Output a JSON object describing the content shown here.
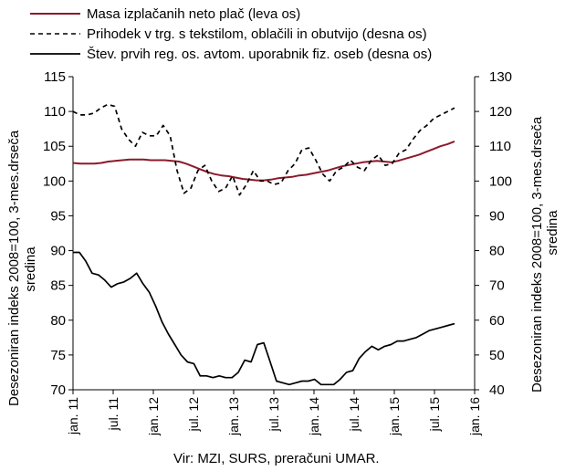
{
  "chart_data": {
    "type": "line",
    "left_axis": {
      "ylim": [
        70,
        115
      ],
      "ticks": [
        70,
        75,
        80,
        85,
        90,
        95,
        100,
        105,
        110,
        115
      ],
      "label_line1": "Desezoniran indeks 2008=100, 3-mes.drseča",
      "label_line2": "sredina"
    },
    "right_axis": {
      "ylim": [
        40,
        130
      ],
      "ticks": [
        40,
        50,
        60,
        70,
        80,
        90,
        100,
        110,
        120,
        130
      ],
      "label_line1": "Desezoniran indeks 2008=100, 3-mes.drseča",
      "label_line2": "sredina"
    },
    "x_axis": {
      "range": [
        "2011-01",
        "2016-01"
      ],
      "tick_labels": [
        "jan. 11",
        "jul. 11",
        "jan. 12",
        "jul. 12",
        "jan. 13",
        "jul. 13",
        "jan. 14",
        "jul. 14",
        "jan. 15",
        "jul. 15",
        "jan. 16"
      ]
    },
    "series": [
      {
        "name": "Masa izplačanih neto plač (leva os)",
        "axis": "left",
        "color": "#8b1a2b",
        "dash": "solid",
        "values": [
          102.6,
          102.5,
          102.5,
          102.5,
          102.6,
          102.8,
          102.9,
          103.0,
          103.1,
          103.1,
          103.1,
          103.0,
          103.0,
          103.0,
          102.9,
          102.8,
          102.5,
          102.1,
          101.7,
          101.3,
          101.0,
          100.8,
          100.7,
          100.5,
          100.3,
          100.2,
          100.1,
          100.1,
          100.2,
          100.4,
          100.5,
          100.6,
          100.8,
          100.9,
          101.1,
          101.3,
          101.5,
          101.8,
          102.1,
          102.3,
          102.5,
          102.7,
          102.8,
          102.9,
          102.8,
          102.7,
          102.9,
          103.2,
          103.5,
          103.8,
          104.2,
          104.6,
          105.0,
          105.3,
          105.7
        ]
      },
      {
        "name": "Prihodek v trg. s tekstilom, oblačili in obutvijo (desna os)",
        "axis": "right",
        "color": "#000000",
        "dash": "dashed",
        "values": [
          120.0,
          119.0,
          119.0,
          119.5,
          121.0,
          122.0,
          121.5,
          115.0,
          112.0,
          110.0,
          114.0,
          113.0,
          113.0,
          116.0,
          113.0,
          103.0,
          96.5,
          98.0,
          103.0,
          104.5,
          100.0,
          97.0,
          98.0,
          101.5,
          96.0,
          99.0,
          103.0,
          100.0,
          100.0,
          99.0,
          99.5,
          103.0,
          105.0,
          109.0,
          109.5,
          106.0,
          102.0,
          100.0,
          103.0,
          104.0,
          106.0,
          104.0,
          103.0,
          106.0,
          107.5,
          104.5,
          105.0,
          108.0,
          109.0,
          112.0,
          114.5,
          116.0,
          118.0,
          119.0,
          120.0,
          121.0
        ]
      },
      {
        "name": "Štev. prvih reg. os. avtom. uporabnik fiz. oseb (desna os)",
        "axis": "right",
        "color": "#000000",
        "dash": "solid",
        "values": [
          79.5,
          79.5,
          77.0,
          73.5,
          73.0,
          71.5,
          69.5,
          70.5,
          71.0,
          72.0,
          73.5,
          70.5,
          68.0,
          64.0,
          59.5,
          56.0,
          53.0,
          50.0,
          48.0,
          47.5,
          44.0,
          44.0,
          43.5,
          44.0,
          43.5,
          43.5,
          45.0,
          48.5,
          48.0,
          53.0,
          53.5,
          48.0,
          42.5,
          42.0,
          41.5,
          42.0,
          42.5,
          42.5,
          43.0,
          41.5,
          41.5,
          41.5,
          43.0,
          45.0,
          45.5,
          49.0,
          51.0,
          52.5,
          51.5,
          52.5,
          53.0,
          54.0,
          54.0,
          54.5,
          55.0,
          56.0,
          57.0,
          57.5,
          58.0,
          58.5,
          59.0
        ]
      }
    ],
    "legend_position": "top-left",
    "grid": false
  },
  "source": "Vir: MZI, SURS, preračuni UMAR."
}
